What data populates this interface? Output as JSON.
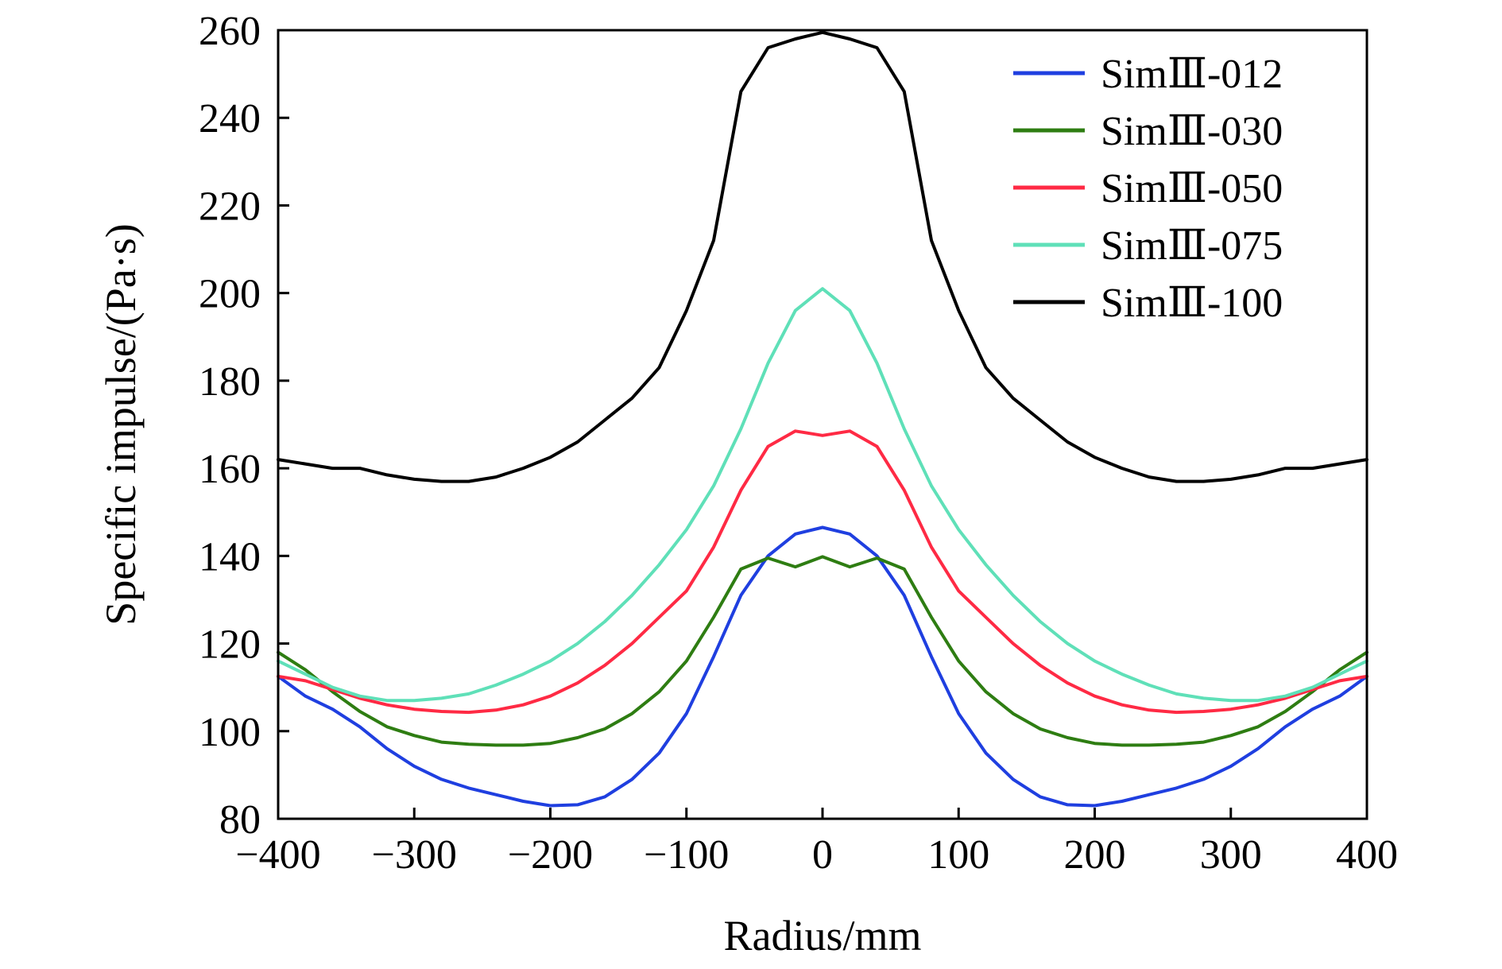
{
  "chart_data": {
    "type": "line",
    "title": "",
    "xlabel": "Radius/mm",
    "ylabel": "Specific impulse/(Pa·s)",
    "xlim": [
      -400,
      400
    ],
    "ylim": [
      80,
      260
    ],
    "xticks": [
      -400,
      -300,
      -200,
      -100,
      0,
      100,
      200,
      300,
      400
    ],
    "xtick_labels": [
      "−400",
      "−300",
      "−200",
      "−100",
      "0",
      "100",
      "200",
      "300",
      "400"
    ],
    "yticks": [
      80,
      100,
      120,
      140,
      160,
      180,
      200,
      220,
      240,
      260
    ],
    "ytick_labels": [
      "80",
      "100",
      "120",
      "140",
      "160",
      "180",
      "200",
      "220",
      "240",
      "260"
    ],
    "grid": false,
    "legend_position": "top-right",
    "x": [
      -400,
      -380,
      -360,
      -340,
      -320,
      -300,
      -280,
      -260,
      -240,
      -220,
      -200,
      -180,
      -160,
      -140,
      -120,
      -100,
      -80,
      -60,
      -40,
      -20,
      0,
      20,
      40,
      60,
      80,
      100,
      120,
      140,
      160,
      180,
      200,
      220,
      240,
      260,
      280,
      300,
      320,
      340,
      360,
      380,
      400
    ],
    "series": [
      {
        "name": "SimⅢ-012",
        "color": "#1f3fe0",
        "values": [
          112.5,
          108,
          105,
          101,
          96,
          92,
          89,
          87,
          85.5,
          84,
          83,
          83.2,
          85,
          89,
          95,
          104,
          117,
          131,
          140,
          145,
          146.5,
          145,
          140,
          131,
          117,
          104,
          95,
          89,
          85,
          83.2,
          83,
          84,
          85.5,
          87,
          89,
          92,
          96,
          101,
          105,
          108,
          112.5
        ]
      },
      {
        "name": "SimⅢ-030",
        "color": "#2e7d12",
        "values": [
          118,
          114,
          109,
          104.5,
          101,
          99,
          97.5,
          97,
          96.8,
          96.8,
          97.2,
          98.5,
          100.5,
          104,
          109,
          116,
          126,
          137,
          139.5,
          137.5,
          139.8,
          137.5,
          139.5,
          137,
          126,
          116,
          109,
          104,
          100.5,
          98.5,
          97.2,
          96.8,
          96.8,
          97,
          97.5,
          99,
          101,
          104.5,
          109,
          114,
          118
        ]
      },
      {
        "name": "SimⅢ-050",
        "color": "#ff2a44",
        "values": [
          112.5,
          111.5,
          109.5,
          107.5,
          106,
          105,
          104.5,
          104.3,
          104.8,
          106,
          108,
          111,
          115,
          120,
          126,
          132,
          142,
          155,
          165,
          168.5,
          167.5,
          168.5,
          165,
          155,
          142,
          132,
          126,
          120,
          115,
          111,
          108,
          106,
          104.8,
          104.3,
          104.5,
          105,
          106,
          107.5,
          109.5,
          111.5,
          112.5
        ]
      },
      {
        "name": "SimⅢ-075",
        "color": "#5fe0b8",
        "values": [
          116,
          113,
          110,
          108,
          107,
          107,
          107.5,
          108.5,
          110.5,
          113,
          116,
          120,
          125,
          131,
          138,
          146,
          156,
          169,
          184,
          196,
          201,
          196,
          184,
          169,
          156,
          146,
          138,
          131,
          125,
          120,
          116,
          113,
          110.5,
          108.5,
          107.5,
          107,
          107,
          108,
          110,
          113,
          116
        ]
      },
      {
        "name": "SimⅢ-100",
        "color": "#000000",
        "values": [
          162,
          161,
          160,
          160,
          158.5,
          157.5,
          157,
          157,
          158,
          160,
          162.5,
          166,
          171,
          176,
          183,
          196,
          212,
          246,
          256,
          258,
          259.5,
          258,
          256,
          246,
          212,
          196,
          183,
          176,
          171,
          166,
          162.5,
          160,
          158,
          157,
          157,
          157.5,
          158.5,
          160,
          160,
          161,
          162
        ]
      }
    ]
  }
}
